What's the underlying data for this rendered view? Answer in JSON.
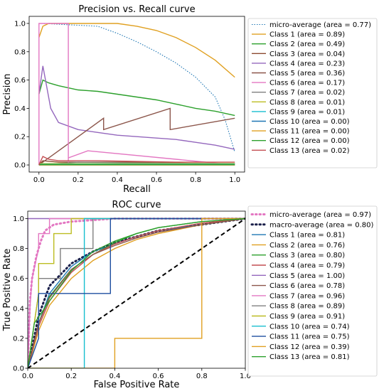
{
  "chart_data": [
    {
      "type": "line",
      "title": "Precision vs. Recall curve",
      "xlabel": "Recall",
      "ylabel": "Precision",
      "xlim": [
        -0.05,
        1.05
      ],
      "ylim": [
        -0.05,
        1.05
      ],
      "xticks": [
        "0.0",
        "0.2",
        "0.4",
        "0.6",
        "0.8",
        "1.0"
      ],
      "yticks": [
        "0.0",
        "0.2",
        "0.4",
        "0.6",
        "0.8",
        "1.0"
      ],
      "legend_position": "outside-right",
      "grid": false,
      "series": [
        {
          "name": "micro-average (area = 0.77)",
          "color": "#1f77b4",
          "style": "dotted",
          "x": [
            0.0,
            0.02,
            0.3,
            0.4,
            0.5,
            0.6,
            0.7,
            0.8,
            0.9,
            0.95,
            1.0
          ],
          "y": [
            1.0,
            1.0,
            0.98,
            0.93,
            0.87,
            0.8,
            0.72,
            0.62,
            0.48,
            0.32,
            0.09
          ]
        },
        {
          "name": "Class 1 (area = 0.89)",
          "color": "#e0a020",
          "style": "solid",
          "x": [
            0.0,
            0.02,
            0.05,
            0.2,
            0.4,
            0.5,
            0.6,
            0.7,
            0.8,
            0.9,
            1.0
          ],
          "y": [
            0.9,
            0.98,
            1.0,
            1.0,
            1.0,
            0.98,
            0.95,
            0.9,
            0.83,
            0.74,
            0.62
          ]
        },
        {
          "name": "Class 2 (area = 0.49)",
          "color": "#2ca02c",
          "style": "solid",
          "x": [
            0.0,
            0.02,
            0.05,
            0.1,
            0.2,
            0.3,
            0.4,
            0.5,
            0.6,
            0.7,
            0.8,
            0.9,
            1.0
          ],
          "y": [
            0.5,
            0.6,
            0.58,
            0.56,
            0.53,
            0.52,
            0.5,
            0.48,
            0.46,
            0.43,
            0.4,
            0.38,
            0.35
          ]
        },
        {
          "name": "Class 3 (area = 0.04)",
          "color": "#8c4a2f",
          "style": "solid",
          "x": [
            0.0,
            0.02,
            0.1,
            0.2,
            0.4,
            0.6,
            0.8,
            1.0
          ],
          "y": [
            0.0,
            0.03,
            0.02,
            0.02,
            0.02,
            0.02,
            0.01,
            0.01
          ]
        },
        {
          "name": "Class 4 (area = 0.23)",
          "color": "#9467bd",
          "style": "solid",
          "x": [
            0.0,
            0.02,
            0.04,
            0.06,
            0.1,
            0.2,
            0.3,
            0.4,
            0.5,
            0.6,
            0.7,
            0.8,
            0.9,
            1.0
          ],
          "y": [
            0.5,
            0.7,
            0.55,
            0.4,
            0.3,
            0.25,
            0.23,
            0.21,
            0.2,
            0.19,
            0.18,
            0.16,
            0.14,
            0.11
          ]
        },
        {
          "name": "Class 5 (area = 0.36)",
          "color": "#8c564b",
          "style": "solid",
          "x": [
            0.0,
            0.02,
            0.33,
            0.33,
            0.67,
            0.67,
            1.0
          ],
          "y": [
            0.0,
            0.02,
            0.33,
            0.25,
            0.4,
            0.25,
            0.33
          ]
        },
        {
          "name": "Class 6 (area = 0.17)",
          "color": "#e377c2",
          "style": "solid",
          "x": [
            0.0,
            0.0,
            0.15,
            0.15,
            0.15,
            0.25,
            1.0
          ],
          "y": [
            0.0,
            1.0,
            1.0,
            0.0,
            0.05,
            0.1,
            0.0
          ]
        },
        {
          "name": "Class 7 (area = 0.02)",
          "color": "#7f7f7f",
          "style": "solid",
          "x": [
            0.0,
            0.2,
            0.5,
            1.0
          ],
          "y": [
            0.0,
            0.02,
            0.015,
            0.01
          ]
        },
        {
          "name": "Class 8 (area = 0.01)",
          "color": "#bcbd22",
          "style": "solid",
          "x": [
            0.0,
            0.5,
            1.0
          ],
          "y": [
            0.01,
            0.01,
            0.01
          ]
        },
        {
          "name": "Class 9 (area = 0.01)",
          "color": "#17becf",
          "style": "solid",
          "x": [
            0.0,
            0.5,
            1.0
          ],
          "y": [
            0.005,
            0.006,
            0.006
          ]
        },
        {
          "name": "Class 10 (area = 0.00)",
          "color": "#1f77b4",
          "style": "solid",
          "x": [
            0.0,
            1.0
          ],
          "y": [
            0.0,
            0.0
          ]
        },
        {
          "name": "Class 11 (area = 0.00)",
          "color": "#e0a020",
          "style": "solid",
          "x": [
            0.0,
            1.0
          ],
          "y": [
            0.0,
            0.0
          ]
        },
        {
          "name": "Class 12 (area = 0.00)",
          "color": "#2ca02c",
          "style": "solid",
          "x": [
            0.0,
            1.0
          ],
          "y": [
            0.002,
            0.002
          ]
        },
        {
          "name": "Class 13 (area = 0.02)",
          "color": "#c44e52",
          "style": "solid",
          "x": [
            0.0,
            0.02,
            0.05,
            0.1,
            0.2,
            0.3,
            0.5,
            0.7,
            1.0
          ],
          "y": [
            0.0,
            0.06,
            0.04,
            0.03,
            0.03,
            0.03,
            0.025,
            0.02,
            0.02
          ]
        }
      ]
    },
    {
      "type": "line",
      "title": "ROC curve",
      "xlabel": "False Positive Rate",
      "ylabel": "True Positive Rate",
      "xlim": [
        0.0,
        1.0
      ],
      "ylim": [
        0.0,
        1.05
      ],
      "xticks": [
        "0.0",
        "0.2",
        "0.4",
        "0.6",
        "0.8",
        "1.0"
      ],
      "yticks": [
        "0.0",
        "0.2",
        "0.4",
        "0.6",
        "0.8",
        "1.0"
      ],
      "legend_position": "outside-right",
      "grid": false,
      "series": [
        {
          "name": "micro-average (area = 0.97)",
          "color": "#e377c2",
          "style": "dotted-thick",
          "x": [
            0.0,
            0.01,
            0.02,
            0.04,
            0.06,
            0.08,
            0.12,
            0.2,
            0.4,
            1.0
          ],
          "y": [
            0.0,
            0.45,
            0.6,
            0.75,
            0.85,
            0.92,
            0.96,
            0.98,
            1.0,
            1.0
          ]
        },
        {
          "name": "macro-average (area = 0.80)",
          "color": "#1a1f4a",
          "style": "dotted-thick",
          "x": [
            0.0,
            0.05,
            0.1,
            0.2,
            0.3,
            0.4,
            0.5,
            0.6,
            0.8,
            1.0
          ],
          "y": [
            0.0,
            0.35,
            0.55,
            0.7,
            0.78,
            0.84,
            0.88,
            0.92,
            0.96,
            1.0
          ]
        },
        {
          "name": "Class 1 (area = 0.81)",
          "color": "#1f77b4",
          "style": "solid",
          "x": [
            0.0,
            0.05,
            0.1,
            0.2,
            0.3,
            0.4,
            0.5,
            0.6,
            0.8,
            1.0
          ],
          "y": [
            0.0,
            0.3,
            0.5,
            0.68,
            0.78,
            0.83,
            0.88,
            0.92,
            0.96,
            1.0
          ]
        },
        {
          "name": "Class 2 (area = 0.76)",
          "color": "#e0a020",
          "style": "solid",
          "x": [
            0.0,
            0.05,
            0.1,
            0.2,
            0.3,
            0.4,
            0.5,
            0.6,
            0.8,
            1.0
          ],
          "y": [
            0.0,
            0.25,
            0.42,
            0.6,
            0.72,
            0.8,
            0.86,
            0.9,
            0.96,
            1.0
          ]
        },
        {
          "name": "Class 3 (area = 0.80)",
          "color": "#2ca02c",
          "style": "solid",
          "x": [
            0.0,
            0.05,
            0.1,
            0.2,
            0.3,
            0.4,
            0.5,
            0.6,
            0.8,
            1.0
          ],
          "y": [
            0.0,
            0.3,
            0.48,
            0.66,
            0.76,
            0.84,
            0.9,
            0.94,
            0.98,
            1.0
          ]
        },
        {
          "name": "Class 4 (area = 0.79)",
          "color": "#c44e52",
          "style": "solid",
          "x": [
            0.0,
            0.05,
            0.1,
            0.2,
            0.3,
            0.4,
            0.5,
            0.6,
            0.8,
            1.0
          ],
          "y": [
            0.0,
            0.28,
            0.45,
            0.64,
            0.76,
            0.83,
            0.88,
            0.92,
            0.97,
            1.0
          ]
        },
        {
          "name": "Class 5 (area = 1.00)",
          "color": "#9467bd",
          "style": "solid",
          "x": [
            0.0,
            0.0,
            1.0
          ],
          "y": [
            0.0,
            1.0,
            1.0
          ]
        },
        {
          "name": "Class 6 (area = 0.78)",
          "color": "#8c564b",
          "style": "solid",
          "x": [
            0.0,
            0.05,
            0.1,
            0.2,
            0.3,
            0.4,
            0.5,
            0.6,
            0.8,
            1.0
          ],
          "y": [
            0.0,
            0.3,
            0.47,
            0.66,
            0.76,
            0.82,
            0.87,
            0.91,
            0.96,
            1.0
          ]
        },
        {
          "name": "Class 7 (area = 0.96)",
          "color": "#e377c2",
          "style": "solid",
          "x": [
            0.0,
            0.01,
            0.02,
            0.05,
            0.05,
            0.1,
            0.1,
            1.0
          ],
          "y": [
            0.0,
            0.4,
            0.6,
            0.8,
            0.9,
            0.9,
            1.0,
            1.0
          ]
        },
        {
          "name": "Class 8 (area = 0.89)",
          "color": "#7f7f7f",
          "style": "solid",
          "x": [
            0.0,
            0.05,
            0.05,
            0.15,
            0.15,
            0.3,
            0.3,
            1.0
          ],
          "y": [
            0.0,
            0.5,
            0.6,
            0.6,
            0.8,
            0.8,
            1.0,
            1.0
          ]
        },
        {
          "name": "Class 9 (area = 0.91)",
          "color": "#bcbd22",
          "style": "solid",
          "x": [
            0.0,
            0.05,
            0.05,
            0.12,
            0.12,
            0.2,
            0.2,
            1.0
          ],
          "y": [
            0.0,
            0.5,
            0.7,
            0.7,
            0.9,
            0.9,
            1.0,
            1.0
          ]
        },
        {
          "name": "Class 10 (area = 0.74)",
          "color": "#17becf",
          "style": "solid",
          "x": [
            0.0,
            0.26,
            0.26,
            1.0
          ],
          "y": [
            0.0,
            0.0,
            1.0,
            1.0
          ]
        },
        {
          "name": "Class 11 (area = 0.75)",
          "color": "#1f4fa0",
          "style": "solid",
          "x": [
            0.0,
            0.05,
            0.05,
            0.12,
            0.12,
            0.38,
            0.38,
            1.0
          ],
          "y": [
            0.0,
            0.2,
            0.5,
            0.5,
            0.5,
            0.5,
            1.0,
            1.0
          ]
        },
        {
          "name": "Class 12 (area = 0.39)",
          "color": "#e0a020",
          "style": "solid",
          "x": [
            0.0,
            0.4,
            0.4,
            0.8,
            0.8,
            1.0
          ],
          "y": [
            0.0,
            0.0,
            0.2,
            0.2,
            1.0,
            1.0
          ]
        },
        {
          "name": "Class 13 (area = 0.81)",
          "color": "#2ca02c",
          "style": "solid",
          "x": [
            0.0,
            0.03,
            0.1,
            0.2,
            0.3,
            0.4,
            0.5,
            0.6,
            0.8,
            1.0
          ],
          "y": [
            0.0,
            0.3,
            0.45,
            0.65,
            0.78,
            0.85,
            0.9,
            0.94,
            0.98,
            1.0
          ]
        },
        {
          "name": "",
          "color": "#000000",
          "style": "dashed-thick",
          "x": [
            0.0,
            1.0
          ],
          "y": [
            0.0,
            1.0
          ]
        }
      ]
    }
  ]
}
